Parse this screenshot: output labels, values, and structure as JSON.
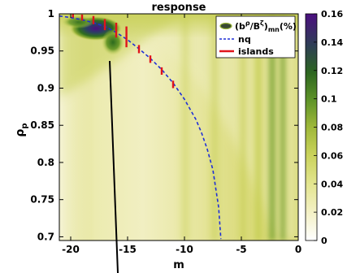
{
  "chart_data": {
    "type": "heatmap",
    "title": "response",
    "xlabel": "m",
    "ylabel": "ρ",
    "ylabel_sub": "p",
    "xlim": [
      -21,
      0
    ],
    "ylim": [
      0.695,
      1.0
    ],
    "xticks": [
      "-20",
      "-15",
      "-10",
      "-5",
      "0"
    ],
    "xtick_values": [
      -20,
      -15,
      -10,
      -5,
      0
    ],
    "yticks": [
      "1",
      "0.95",
      "0.9",
      "0.85",
      "0.8",
      "0.75",
      "0.7"
    ],
    "ytick_values": [
      1.0,
      0.95,
      0.9,
      0.85,
      0.8,
      0.75,
      0.7
    ],
    "colorbar": {
      "min": 0,
      "max": 0.16,
      "ticks": [
        "0",
        "0.02",
        "0.04",
        "0.06",
        "0.08",
        "0.1",
        "0.12",
        "0.14",
        "0.16"
      ],
      "tick_values": [
        0,
        0.02,
        0.04,
        0.06,
        0.08,
        0.1,
        0.12,
        0.14,
        0.16
      ],
      "colors": [
        "#ffffff",
        "#f4f1c7",
        "#e3e58f",
        "#c9d25a",
        "#a9bd3a",
        "#6a9a2a",
        "#2f6e1e",
        "#2b4a4a",
        "#3d1f6b",
        "#4b0f80"
      ]
    },
    "legend": [
      {
        "label": "(b",
        "label_sup": "ρ",
        "label_mid": "/B",
        "label_sup2": "ζ",
        "label_end": ")",
        "label_sub": "mn",
        "label_tail": "(%)",
        "marker": "ellipse"
      },
      {
        "label": "nq",
        "style": "dashed",
        "color": "#1f2fd6"
      },
      {
        "label": "islands",
        "style": "solid",
        "color": "#e0141b"
      }
    ],
    "legend_position": "top-right",
    "series": [
      {
        "name": "nq",
        "x": [
          -21,
          -20,
          -19,
          -18,
          -17,
          -16,
          -15,
          -14,
          -13,
          -12,
          -11,
          -10,
          -9,
          -8.5,
          -8,
          -7.5,
          -7,
          -6.8
        ],
        "y": [
          0.997,
          0.995,
          0.992,
          0.988,
          0.983,
          0.975,
          0.965,
          0.953,
          0.94,
          0.925,
          0.907,
          0.885,
          0.858,
          0.84,
          0.818,
          0.79,
          0.74,
          0.697
        ]
      },
      {
        "name": "islands",
        "segments": [
          {
            "x": -19.8,
            "y": [
              0.995,
              1.0
            ]
          },
          {
            "x": -19.0,
            "y": [
              0.991,
              0.999
            ]
          },
          {
            "x": -18.0,
            "y": [
              0.986,
              0.997
            ]
          },
          {
            "x": -17.0,
            "y": [
              0.978,
              0.993
            ]
          },
          {
            "x": -16.0,
            "y": [
              0.968,
              0.988
            ]
          },
          {
            "x": -15.1,
            "y": [
              0.955,
              0.983
            ]
          },
          {
            "x": -14.0,
            "y": [
              0.947,
              0.958
            ]
          },
          {
            "x": -13.0,
            "y": [
              0.934,
              0.944
            ]
          },
          {
            "x": -12.0,
            "y": [
              0.918,
              0.928
            ]
          },
          {
            "x": -11.0,
            "y": [
              0.9,
              0.91
            ]
          }
        ]
      }
    ],
    "hotspots": [
      {
        "x": -17.0,
        "y": 0.982,
        "value": 0.16
      },
      {
        "x": -16.0,
        "y": 0.965,
        "value": 0.09
      },
      {
        "x": -18.5,
        "y": 0.988,
        "value": 0.12
      }
    ],
    "grid": false
  }
}
